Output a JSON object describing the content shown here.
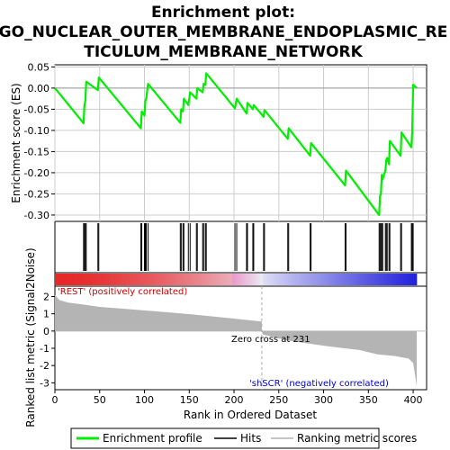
{
  "chart_data": {
    "type": "line",
    "title_lines": [
      "Enrichment plot:",
      "GO_NUCLEAR_OUTER_MEMBRANE_ENDOPLASMIC_RE",
      "TICULUM_MEMBRANE_NETWORK"
    ],
    "es_panel": {
      "ylabel": "Enrichment score (ES)",
      "ylim": [
        -0.315,
        0.055
      ],
      "yticks": [
        0.05,
        0.0,
        -0.05,
        -0.1,
        -0.15,
        -0.2,
        -0.25,
        -0.3
      ],
      "ytick_labels": [
        "0.05",
        "0.00",
        "-0.05",
        "-0.10",
        "-0.15",
        "-0.20",
        "-0.25",
        "-0.30"
      ],
      "points": [
        [
          0,
          0.0
        ],
        [
          32,
          -0.083
        ],
        [
          33,
          -0.04
        ],
        [
          34,
          -0.03
        ],
        [
          35,
          0.015
        ],
        [
          48,
          -0.005
        ],
        [
          49,
          0.025
        ],
        [
          96,
          -0.095
        ],
        [
          97,
          -0.055
        ],
        [
          100,
          -0.065
        ],
        [
          101,
          -0.03
        ],
        [
          102,
          -0.025
        ],
        [
          104,
          0.01
        ],
        [
          140,
          -0.082
        ],
        [
          141,
          -0.05
        ],
        [
          143,
          -0.055
        ],
        [
          144,
          -0.025
        ],
        [
          149,
          -0.04
        ],
        [
          151,
          -0.01
        ],
        [
          158,
          -0.025
        ],
        [
          159,
          0.0
        ],
        [
          165,
          -0.01
        ],
        [
          166,
          0.01
        ],
        [
          168,
          0.008
        ],
        [
          169,
          0.035
        ],
        [
          201,
          -0.048
        ],
        [
          203,
          -0.025
        ],
        [
          214,
          -0.06
        ],
        [
          215,
          -0.035
        ],
        [
          221,
          -0.05
        ],
        [
          222,
          -0.04
        ],
        [
          233,
          -0.068
        ],
        [
          234,
          -0.052
        ],
        [
          260,
          -0.12
        ],
        [
          261,
          -0.095
        ],
        [
          285,
          -0.16
        ],
        [
          286,
          -0.13
        ],
        [
          324,
          -0.23
        ],
        [
          325,
          -0.195
        ],
        [
          362,
          -0.3
        ],
        [
          363,
          -0.255
        ],
        [
          364,
          -0.25
        ],
        [
          365,
          -0.205
        ],
        [
          366,
          -0.215
        ],
        [
          369,
          -0.195
        ],
        [
          370,
          -0.17
        ],
        [
          371,
          -0.165
        ],
        [
          373,
          -0.18
        ],
        [
          374,
          -0.125
        ],
        [
          386,
          -0.16
        ],
        [
          387,
          -0.105
        ],
        [
          398,
          -0.14
        ],
        [
          399,
          -0.1
        ],
        [
          400,
          0.008
        ],
        [
          404,
          0.0
        ]
      ]
    },
    "hits": [
      32,
      33,
      34,
      35,
      48,
      49,
      96,
      97,
      100,
      101,
      102,
      104,
      140,
      141,
      143,
      144,
      149,
      151,
      158,
      159,
      165,
      166,
      168,
      169,
      201,
      203,
      214,
      215,
      221,
      222,
      233,
      234,
      260,
      261,
      285,
      286,
      324,
      325,
      362,
      363,
      364,
      365,
      366,
      369,
      370,
      371,
      373,
      374,
      386,
      387,
      398,
      399,
      400
    ],
    "metric_panel": {
      "ylabel": "Ranked list metric (Signal2Noise)",
      "ylim": [
        -3.4,
        2.6
      ],
      "yticks": [
        2,
        1,
        0,
        -1,
        -2,
        -3
      ],
      "ytick_labels": [
        "2",
        "1",
        "0",
        "-1",
        "-2",
        "-3"
      ],
      "profile": [
        [
          0,
          2.1
        ],
        [
          5,
          1.8
        ],
        [
          15,
          1.65
        ],
        [
          30,
          1.55
        ],
        [
          50,
          1.4
        ],
        [
          100,
          1.2
        ],
        [
          150,
          0.98
        ],
        [
          200,
          0.72
        ],
        [
          231,
          0.55
        ],
        [
          231,
          0.0
        ],
        [
          232,
          -0.2
        ],
        [
          260,
          -0.55
        ],
        [
          300,
          -0.85
        ],
        [
          340,
          -1.1
        ],
        [
          360,
          -1.35
        ],
        [
          380,
          -1.45
        ],
        [
          395,
          -1.6
        ],
        [
          400,
          -1.85
        ],
        [
          404,
          -3.2
        ]
      ],
      "zero_cross_label": "Zero cross at 231",
      "zero_cross": 231,
      "pos_label": "'REST' (positively correlated)",
      "neg_label": "'shSCR' (negatively correlated)"
    },
    "xlabel": "Rank in Ordered Dataset",
    "xlim": [
      0,
      415
    ],
    "xticks": [
      0,
      50,
      100,
      150,
      200,
      250,
      300,
      350,
      400
    ],
    "xtick_labels": [
      "0",
      "50",
      "100",
      "150",
      "200",
      "250",
      "300",
      "350",
      "400"
    ],
    "n_genes": 404,
    "legend": [
      "Enrichment profile",
      "Hits",
      "Ranking metric scores"
    ],
    "legend_placement": "bottom",
    "colors": {
      "es_line": "#00ee00",
      "hit": "#000000",
      "metric_fill": "#b4b4b4",
      "zero_line": "#bdbdbd",
      "grid": "#cccccc",
      "pos_label": "#cc0000",
      "neg_label": "#0000cc",
      "heat_pos": "#e62e2e",
      "heat_neg": "#2e2ee6"
    }
  }
}
